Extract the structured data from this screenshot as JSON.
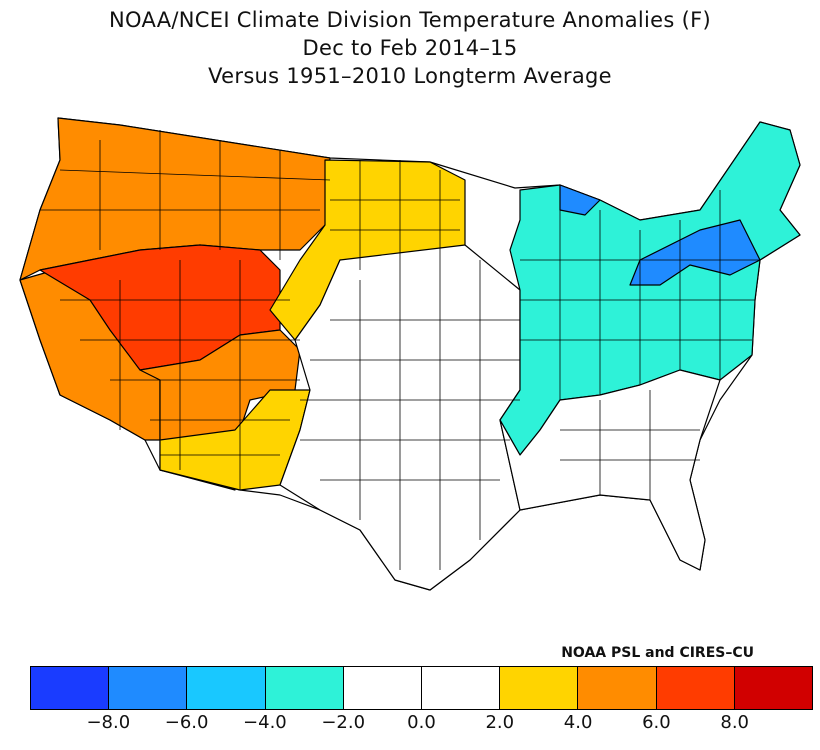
{
  "title": {
    "line1": "NOAA/NCEI Climate Division Temperature Anomalies (F)",
    "line2": "Dec to Feb 2014–15",
    "line3": "Versus 1951–2010 Longterm Average"
  },
  "credit": "NOAA PSL and CIRES–CU",
  "legend": {
    "colors": [
      "#1a3cff",
      "#1f8bff",
      "#19c8ff",
      "#2ef2d8",
      "#ffffff",
      "#ffffff",
      "#ffd400",
      "#ff8c00",
      "#ff3c00",
      "#d10000"
    ],
    "ticks": [
      "−8.0",
      "−6.0",
      "−4.0",
      "−2.0",
      "0.0",
      "2.0",
      "4.0",
      "6.0",
      "8.0"
    ]
  },
  "map_regions": [
    {
      "name": "pacific-northwest",
      "color": "#ff8c00"
    },
    {
      "name": "great-basin",
      "color": "#ff3c00"
    },
    {
      "name": "california",
      "color": "#ff8c00"
    },
    {
      "name": "southwest",
      "color": "#ffd400"
    },
    {
      "name": "northern-plains",
      "color": "#ffd400"
    },
    {
      "name": "midwest-east",
      "color": "#2ef2d8"
    },
    {
      "name": "northeast-cold",
      "color": "#1f8bff"
    },
    {
      "name": "central-south",
      "color": "#ffffff"
    }
  ]
}
